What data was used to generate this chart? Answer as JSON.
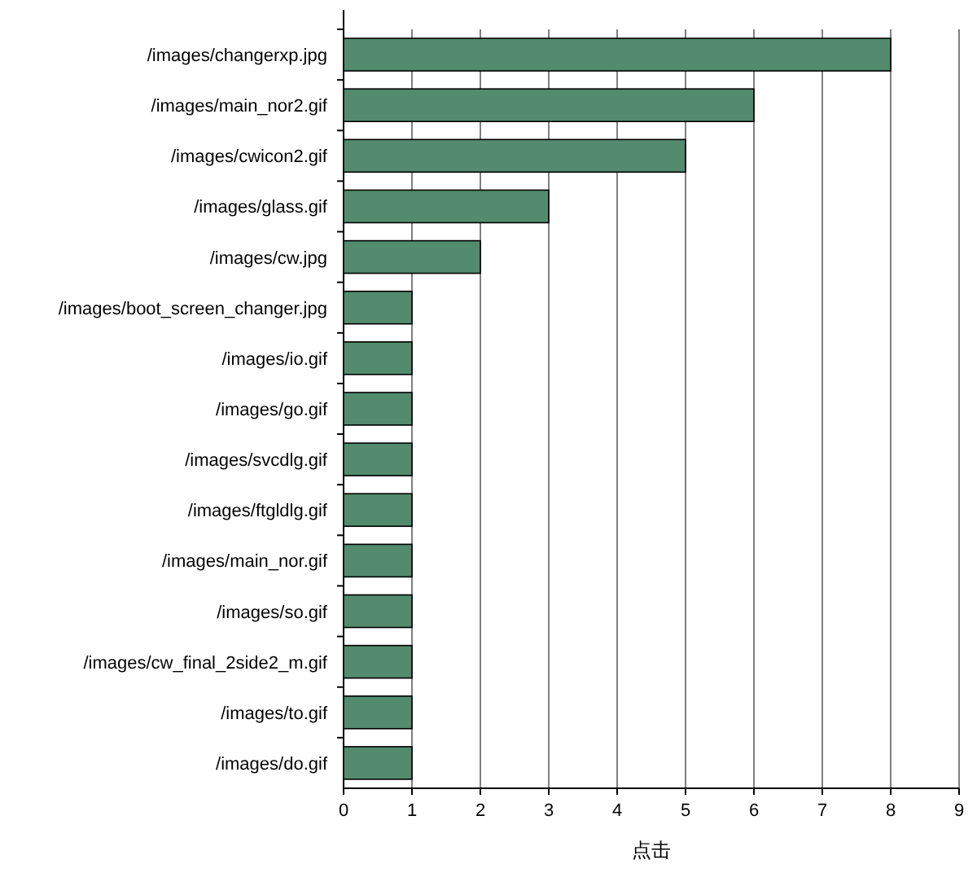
{
  "chart_data": {
    "type": "bar",
    "orientation": "horizontal",
    "categories": [
      "/images/changerxp.jpg",
      "/images/main_nor2.gif",
      "/images/cwicon2.gif",
      "/images/glass.gif",
      "/images/cw.jpg",
      "/images/boot_screen_changer.jpg",
      "/images/io.gif",
      "/images/go.gif",
      "/images/svcdlg.gif",
      "/images/ftgldlg.gif",
      "/images/main_nor.gif",
      "/images/so.gif",
      "/images/cw_final_2side2_m.gif",
      "/images/to.gif",
      "/images/do.gif"
    ],
    "values": [
      8,
      6,
      5,
      3,
      2,
      1,
      1,
      1,
      1,
      1,
      1,
      1,
      1,
      1,
      1
    ],
    "color": "#528b6e",
    "xlabel": "点击",
    "xlim": [
      0,
      9
    ],
    "xticks": [
      0,
      1,
      2,
      3,
      4,
      5,
      6,
      7,
      8,
      9
    ],
    "grid": "x"
  }
}
